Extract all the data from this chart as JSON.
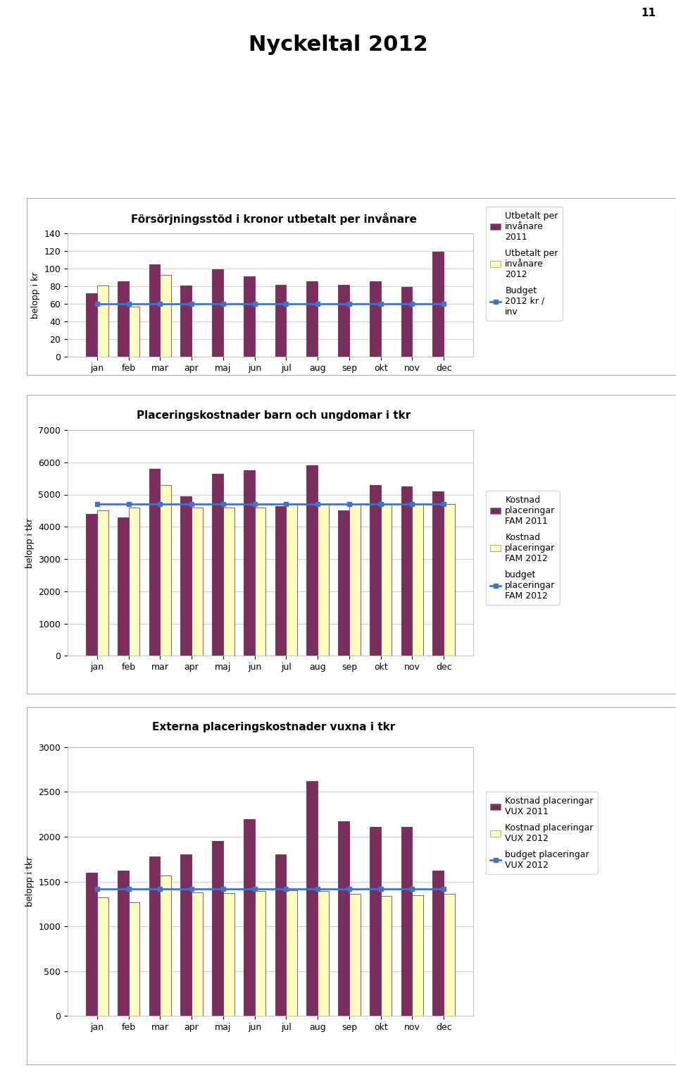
{
  "page_number": "11",
  "main_title": "Nyckeltal 2012",
  "months": [
    "jan",
    "feb",
    "mar",
    "apr",
    "maj",
    "jun",
    "jul",
    "aug",
    "sep",
    "okt",
    "nov",
    "dec"
  ],
  "chart1": {
    "title": "Försörjningsstöd i kronor utbetalt per invånare",
    "ylabel": "belopp i kr",
    "ylim": [
      0,
      140
    ],
    "yticks": [
      0,
      20,
      40,
      60,
      80,
      100,
      120,
      140
    ],
    "series1_label": "Utbetalt per\ninvånare\n2011",
    "series1_color": "#7B2D5E",
    "series1": [
      72,
      86,
      105,
      81,
      99,
      91,
      82,
      86,
      82,
      86,
      79,
      119
    ],
    "series2_label": "Utbetalt per\ninvånare\n2012",
    "series2_color": "#FFFFC0",
    "series2": [
      81,
      57,
      93,
      0,
      0,
      0,
      0,
      0,
      0,
      0,
      0,
      0
    ],
    "budget_label": "Budget\n2012 kr /\ninv",
    "budget_color": "#4472C4",
    "budget_value": 60
  },
  "chart2": {
    "title": "Placeringskostnader barn och ungdomar i tkr",
    "ylabel": "belopp i tkr",
    "ylim": [
      0,
      7000
    ],
    "yticks": [
      0,
      1000,
      2000,
      3000,
      4000,
      5000,
      6000,
      7000
    ],
    "series1_label": "Kostnad\nplaceringar\nFAM 2011",
    "series1_color": "#7B2D5E",
    "series1": [
      4400,
      4300,
      5800,
      4950,
      5650,
      5750,
      4650,
      5900,
      4500,
      5300,
      5250,
      5100
    ],
    "series2_label": "Kostnad\nplaceringar\nFAM 2012",
    "series2_color": "#FFFFC0",
    "series2": [
      4500,
      4600,
      5300,
      4600,
      4600,
      4600,
      4700,
      4700,
      4700,
      4700,
      4700,
      4700
    ],
    "budget_label": "budget\nplaceringar\nFAM 2012",
    "budget_color": "#4472C4",
    "budget_value": 4700
  },
  "chart3": {
    "title": "Externa placeringskostnader vuxna i tkr",
    "ylabel": "belopp i tkr",
    "ylim": [
      0,
      3000
    ],
    "yticks": [
      0,
      500,
      1000,
      1500,
      2000,
      2500,
      3000
    ],
    "series1_label": "Kostnad placeringar\nVUX 2011",
    "series1_color": "#7B2D5E",
    "series1": [
      1600,
      1620,
      1780,
      1800,
      1950,
      2200,
      1800,
      2620,
      2170,
      2110,
      2110,
      1620
    ],
    "series2_label": "Kostnad placeringar\nVUX 2012",
    "series2_color": "#FFFFC0",
    "series2": [
      1320,
      1270,
      1570,
      1380,
      1370,
      1390,
      1400,
      1390,
      1360,
      1340,
      1350,
      1360
    ],
    "budget_label": "budget placeringar\nVUX 2012",
    "budget_color": "#4472C4",
    "budget_value": 1420
  },
  "bar_border_color": "#5B1A3A",
  "background_color": "#FFFFFF",
  "chart_bg_color": "#FFFFFF",
  "grid_color": "#C8C8C8",
  "title_fontsize": 22,
  "chart_title_fontsize": 11,
  "axis_label_fontsize": 9,
  "tick_fontsize": 9,
  "legend_fontsize": 9
}
